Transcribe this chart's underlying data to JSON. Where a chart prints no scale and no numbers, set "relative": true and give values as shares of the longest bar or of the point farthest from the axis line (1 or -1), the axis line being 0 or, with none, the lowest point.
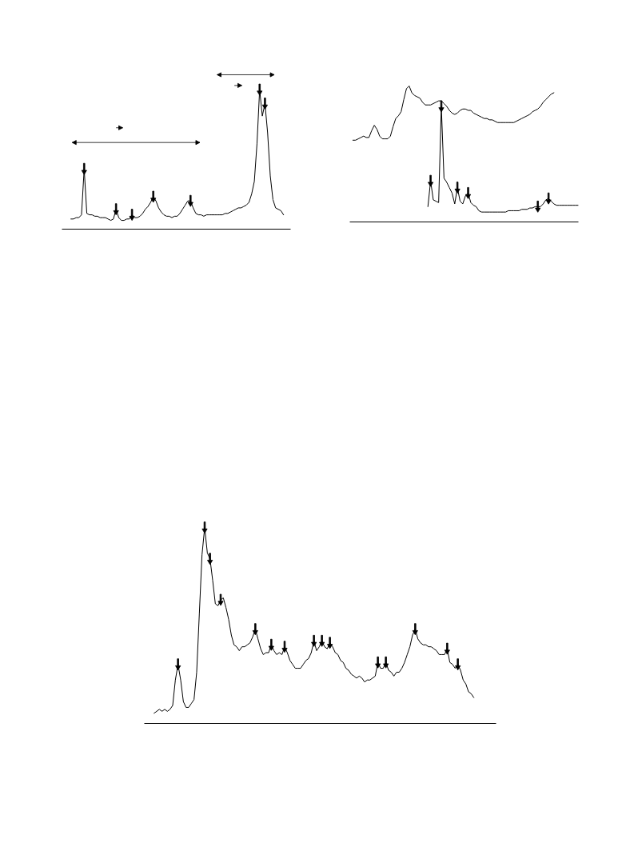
{
  "chart_data": [
    {
      "type": "line",
      "relative": true,
      "categories": [
        null,
        null,
        null,
        null,
        null,
        null,
        null,
        null,
        null,
        null,
        null,
        null,
        null,
        null,
        null,
        null,
        null,
        null,
        null,
        null,
        null,
        null,
        null,
        null,
        null,
        null,
        null,
        null,
        null,
        null,
        null,
        null,
        null,
        null,
        null,
        null,
        null,
        null,
        null,
        null,
        null,
        null,
        null,
        null,
        null,
        null,
        null,
        null,
        null,
        null,
        null,
        null,
        null,
        null,
        null,
        null,
        null,
        null,
        null,
        null,
        null,
        null,
        null,
        null,
        null,
        null,
        null,
        null,
        null,
        null,
        null,
        null,
        null,
        null,
        null,
        null,
        null,
        null,
        null,
        null,
        null
      ],
      "series": [
        {
          "color": "#000000",
          "values": [
            0.07,
            0.07,
            0.08,
            0.08,
            0.1,
            0.43,
            0.11,
            0.1,
            0.1,
            0.09,
            0.09,
            0.08,
            0.08,
            0.08,
            0.07,
            0.06,
            0.07,
            0.14,
            0.08,
            0.06,
            0.06,
            0.07,
            0.07,
            0.1,
            0.08,
            0.08,
            0.09,
            0.11,
            0.14,
            0.16,
            0.19,
            0.23,
            0.2,
            0.15,
            0.12,
            0.1,
            0.09,
            0.09,
            0.08,
            0.09,
            0.09,
            0.11,
            0.14,
            0.17,
            0.2,
            0.2,
            0.15,
            0.11,
            0.1,
            0.1,
            0.09,
            0.1,
            0.1,
            0.1,
            0.1,
            0.1,
            0.1,
            0.1,
            0.11,
            0.11,
            0.12,
            0.13,
            0.14,
            0.15,
            0.15,
            0.16,
            0.17,
            0.19,
            0.25,
            0.34,
            0.61,
            1.0,
            0.81,
            0.9,
            0.69,
            0.38,
            0.21,
            0.15,
            0.14,
            0.13,
            0.1
          ]
        }
      ]
    },
    {
      "type": "line",
      "relative": true,
      "categories": [
        null,
        null,
        null,
        null,
        null,
        null,
        null,
        null,
        null,
        null,
        null,
        null,
        null,
        null,
        null,
        null,
        null,
        null,
        null,
        null,
        null,
        null,
        null,
        null,
        null,
        null,
        null,
        null,
        null,
        null,
        null,
        null,
        null,
        null,
        null,
        null,
        null,
        null,
        null,
        null,
        null,
        null,
        null,
        null,
        null,
        null,
        null,
        null,
        null,
        null,
        null,
        null,
        null,
        null,
        null,
        null,
        null,
        null,
        null,
        null,
        null,
        null,
        null,
        null,
        null,
        null,
        null,
        null,
        null,
        null,
        null,
        null,
        null,
        null,
        null,
        null,
        null,
        null,
        null,
        null,
        null,
        null,
        null,
        null,
        null,
        null
      ],
      "series": [
        {
          "color": "#000000",
          "values": [
            null,
            0.6,
            0.6,
            0.61,
            0.62,
            0.63,
            0.62,
            0.62,
            0.67,
            0.71,
            0.68,
            0.63,
            0.61,
            0.61,
            0.61,
            0.63,
            0.7,
            0.76,
            0.78,
            0.81,
            0.9,
            0.98,
            1.0,
            0.95,
            0.93,
            0.92,
            0.91,
            0.88,
            0.86,
            0.86,
            0.86,
            0.87,
            0.88,
            0.89,
            0.89,
            0.87,
            0.85,
            0.82,
            0.8,
            0.79,
            0.8,
            0.82,
            0.83,
            0.83,
            0.82,
            0.82,
            0.8,
            0.79,
            0.78,
            0.77,
            0.76,
            0.76,
            0.75,
            0.75,
            0.74,
            0.73,
            0.73,
            0.73,
            0.73,
            0.73,
            0.73,
            0.73,
            0.74,
            0.75,
            0.76,
            0.77,
            0.78,
            0.79,
            0.81,
            0.82,
            0.83,
            0.85,
            0.88,
            0.9,
            0.92,
            0.94,
            0.95,
            null,
            null,
            null,
            null,
            null,
            null,
            null,
            null,
            null
          ]
        },
        {
          "color": "#000000",
          "values": [
            null,
            null,
            null,
            null,
            null,
            null,
            null,
            null,
            null,
            null,
            null,
            null,
            null,
            null,
            null,
            null,
            null,
            null,
            null,
            null,
            null,
            null,
            null,
            null,
            null,
            null,
            null,
            null,
            null,
            0.11,
            0.3,
            0.16,
            0.15,
            0.14,
            0.85,
            0.32,
            0.29,
            0.25,
            0.21,
            0.13,
            0.25,
            0.15,
            0.13,
            0.19,
            0.21,
            0.14,
            0.12,
            0.11,
            0.08,
            0.07,
            0.07,
            0.07,
            0.07,
            0.07,
            0.07,
            0.07,
            0.07,
            0.07,
            0.07,
            0.08,
            0.08,
            0.08,
            0.08,
            0.08,
            0.09,
            0.09,
            0.09,
            0.1,
            0.1,
            0.11,
            0.11,
            0.11,
            0.13,
            0.16,
            0.17,
            0.15,
            0.13,
            0.12,
            0.12,
            0.12,
            0.12,
            0.12,
            0.12,
            0.12,
            0.12,
            0.12
          ]
        }
      ]
    },
    {
      "type": "line",
      "relative": true,
      "categories": [
        null,
        null,
        null,
        null,
        null,
        null,
        null,
        null,
        null,
        null,
        null,
        null,
        null,
        null,
        null,
        null,
        null,
        null,
        null,
        null,
        null,
        null,
        null,
        null,
        null,
        null,
        null,
        null,
        null,
        null,
        null,
        null,
        null,
        null,
        null,
        null,
        null,
        null,
        null,
        null,
        null,
        null,
        null,
        null,
        null,
        null,
        null,
        null,
        null,
        null,
        null,
        null,
        null,
        null,
        null,
        null,
        null,
        null,
        null,
        null,
        null,
        null,
        null,
        null,
        null,
        null,
        null,
        null,
        null,
        null,
        null,
        null,
        null,
        null,
        null,
        null,
        null,
        null,
        null,
        null,
        null,
        null,
        null,
        null,
        null,
        null,
        null,
        null,
        null,
        null,
        null,
        null,
        null,
        null,
        null,
        null,
        null,
        null,
        null,
        null,
        null,
        null,
        null,
        null,
        null,
        null,
        null,
        null,
        null,
        null,
        null,
        null,
        null,
        null,
        null,
        null,
        null,
        null,
        null,
        null,
        null
      ],
      "series": [
        {
          "color": "#000000",
          "values": [
            0.05,
            0.06,
            0.07,
            0.06,
            0.07,
            0.06,
            0.07,
            0.09,
            0.22,
            0.3,
            0.22,
            0.11,
            0.08,
            0.08,
            0.1,
            0.12,
            0.26,
            0.56,
            0.86,
            1.0,
            0.87,
            0.84,
            0.73,
            0.61,
            0.6,
            0.63,
            0.64,
            0.59,
            0.53,
            0.45,
            0.4,
            0.39,
            0.37,
            0.39,
            0.39,
            0.4,
            0.41,
            0.44,
            0.48,
            0.43,
            0.38,
            0.35,
            0.36,
            0.36,
            0.4,
            0.37,
            0.35,
            0.36,
            0.35,
            0.39,
            0.36,
            0.32,
            0.3,
            0.28,
            0.28,
            0.28,
            0.3,
            0.32,
            0.33,
            0.36,
            0.42,
            0.37,
            0.39,
            0.42,
            0.39,
            0.38,
            0.41,
            0.39,
            0.36,
            0.35,
            0.32,
            0.31,
            0.28,
            0.27,
            0.25,
            0.24,
            0.23,
            0.24,
            0.23,
            0.21,
            0.22,
            0.22,
            0.23,
            0.24,
            0.31,
            0.28,
            0.28,
            0.31,
            0.27,
            0.26,
            0.24,
            0.26,
            0.26,
            0.28,
            0.31,
            0.35,
            0.39,
            0.45,
            0.48,
            0.43,
            0.41,
            0.4,
            0.4,
            0.39,
            0.39,
            0.38,
            0.37,
            0.35,
            0.35,
            0.35,
            0.38,
            0.31,
            0.3,
            0.28,
            0.3,
            0.27,
            0.22,
            0.2,
            0.16,
            0.15,
            0.13
          ]
        }
      ]
    }
  ]
}
